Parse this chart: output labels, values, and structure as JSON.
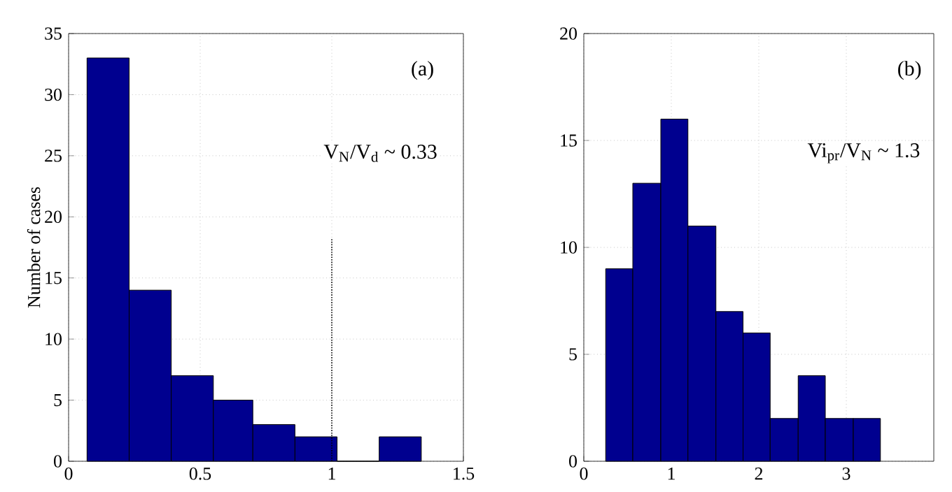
{
  "chart_data": [
    {
      "type": "histogram",
      "ylabel": "Number of cases",
      "bins": [
        0.07,
        0.23,
        0.39,
        0.55,
        0.7,
        0.86,
        1.02,
        1.18,
        1.34
      ],
      "values": [
        33,
        14,
        7,
        5,
        3,
        2,
        0,
        2
      ],
      "color": "#00008f",
      "xlim": [
        0,
        1.5
      ],
      "xticks": [
        0,
        0.5,
        1,
        1.5
      ],
      "ylim": [
        0,
        35
      ],
      "yticks": [
        0,
        5,
        10,
        15,
        20,
        25,
        30,
        35
      ],
      "grid": true,
      "ref_lines": [
        {
          "axis": "x",
          "value": 1,
          "line_style": "dotted",
          "color": "#000000"
        }
      ],
      "annotations": [
        "(a)",
        "V$_{N}$/V$_{d}$ ~ 0.33"
      ]
    },
    {
      "type": "histogram",
      "bins": [
        0.25,
        0.56,
        0.88,
        1.19,
        1.51,
        1.82,
        2.13,
        2.45,
        2.76,
        3.08,
        3.39
      ],
      "values": [
        9,
        13,
        16,
        11,
        7,
        6,
        2,
        4,
        2,
        2
      ],
      "color": "#00008f",
      "xlim": [
        0,
        4
      ],
      "xticks": [
        0,
        1,
        2,
        3
      ],
      "ylim": [
        0,
        20
      ],
      "yticks": [
        0,
        5,
        10,
        15,
        20
      ],
      "grid": true,
      "annotations": [
        "(b)",
        "Vi$_{pr}$/V$_{N}$ ~ 1.3"
      ]
    }
  ]
}
